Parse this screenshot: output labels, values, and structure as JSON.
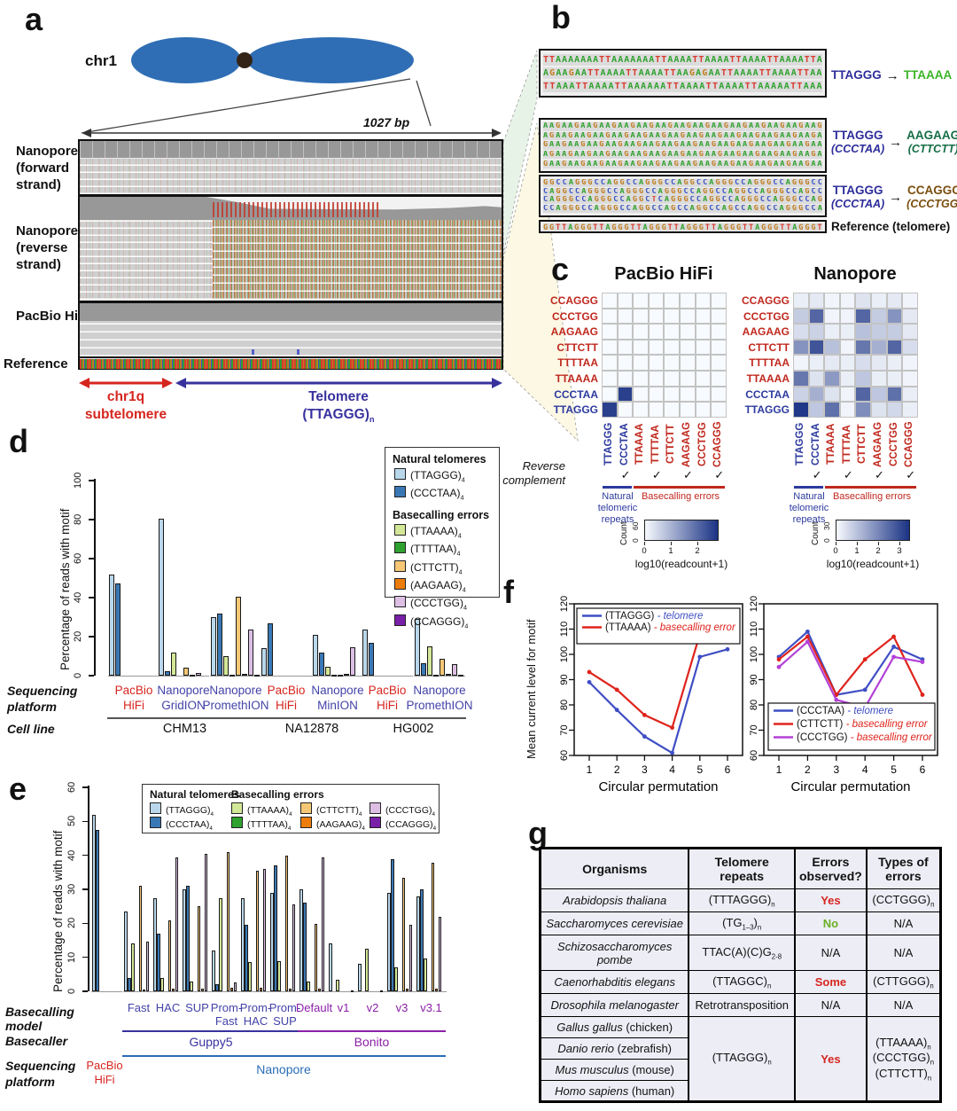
{
  "motifs": [
    "TTAGGG",
    "CCCTAA",
    "TTAAAA",
    "TTTTAA",
    "CTTCTT",
    "AAGAAG",
    "CCCTGG",
    "CCAGGG"
  ],
  "motif_colors": {
    "TTAGGG": "#b9d7ea",
    "CCCTAA": "#3a78b5",
    "TTAAAA": "#d3e897",
    "TTTTAA": "#2ea12e",
    "CTTCTT": "#f6c876",
    "AAGAAG": "#ec7d0c",
    "CCCTGG": "#ddbfe4",
    "CCAGGG": "#7a1fa8"
  },
  "base_colors": {
    "A": "#2fa12e",
    "C": "#3b55c4",
    "G": "#c07c1e",
    "T": "#d93b2f"
  },
  "panel_a": {
    "label": "a",
    "chrom_label": "chr1",
    "scale_label": "1027 bp",
    "track_labels": [
      "Nanopore (forward strand)",
      "Nanopore (reverse strand)",
      "PacBio HiFi",
      "Reference"
    ],
    "regions": [
      {
        "label": "chr1q subtelomere",
        "color": "#d6251f"
      },
      {
        "label": "Telomere (TTAGGG)~n~",
        "color": "#38329e"
      }
    ]
  },
  "panel_b": {
    "label": "b",
    "boxes": [
      {
        "rows": [
          "TTAAAAAAATTAAAAAAATTAAAATTAAAATTAAAATTAAAATTA",
          "AGAAGAATTAAAATTAAAATTAAGAGAATTAAAATTAAAATTAA",
          "TTAAATTAAAATTAAAAAATTAAAATTAAAATTAAAAATTAAA"
        ]
      },
      {
        "rows": [
          "AAGAAGAAGAAGAAGAAGAAGAAGAAGAAGAAGAAGAAGAAGAAG",
          "AGAAGAAGAAGAAGAAGAAGAAGAAGAAGAAGAAGAAGAAGAAGA",
          "GAAGAAGAAGAAGAAGAAGAAGAAGAAGAAGAAGAAGAAGAAGAA",
          "AGAAGAAGAAGAAGAAGAAGAAGAAGAAGAAGAAGAAGAAGAAGA",
          "GAAGAAGAAGAAGAAGAAGAAGAAGAAGAAGAAGAAGAAGAAGAA"
        ]
      },
      {
        "rows": [
          "GGCCAGGGCCAGGCCAGGGCCAGGCCAGGGCCAGGGCCAGGGCC",
          "CAGGCCAGGGCCAGGGCCAGGGCCAGGCCAGGCCAGGGCCAGCC",
          "CAGGGCCAGGGCCAGGCTCAGGGCCAGGCCAGGGCCAGGGCCAG",
          "CCAGGGCCAGGGCCAGGCCAGCCAGGCCAGCCAGGCCAGGGCCA"
        ]
      },
      {
        "rows": [
          "GGTTAGGGTTAGGGTTAGGGTTAGGGTTAGGGTTAGGGTTAGGGT"
        ]
      }
    ],
    "annotations": [
      {
        "from": [
          "TTAGGG"
        ],
        "to": [
          "TTAAAA"
        ],
        "to_color": "#3cb527"
      },
      {
        "from": [
          "TTAGGG",
          "(CCCTAA)"
        ],
        "to": [
          "AAGAAG",
          "(CTTCTT)"
        ],
        "to_color": "#156e46"
      },
      {
        "from": [
          "TTAGGG",
          "(CCCTAA)"
        ],
        "to": [
          "CCAGGG",
          "(CCCTGG)"
        ],
        "to_color": "#7a4e0e"
      }
    ],
    "from_color": "#2d2d9b",
    "reference_label": "Reference (telomere)"
  },
  "panel_c": {
    "label": "c",
    "row_labels": [
      "CCAGGG",
      "CCCTGG",
      "AAGAAG",
      "CTTCTT",
      "TTTTAA",
      "TTAAAA",
      "CCCTAA",
      "TTAGGG"
    ],
    "col_labels": [
      "TTAGGG",
      "CCCTAA",
      "TTAAAA",
      "TTTTAA",
      "CTTCTT",
      "AAGAAG",
      "CCCTGG",
      "CCAGGG"
    ],
    "blue_motifs": [
      "TTAGGG",
      "CCCTAA"
    ],
    "blue": "#2d3a9e",
    "red": "#c0281e",
    "heatmaps": [
      {
        "title": "PacBio HiFi",
        "max": 2.8,
        "count_max": "60",
        "scale_ticks": [
          0,
          1,
          2
        ],
        "matrix": [
          [
            0,
            0,
            0,
            0,
            0,
            0,
            0,
            0
          ],
          [
            0,
            0,
            0,
            0,
            0,
            0,
            0,
            0
          ],
          [
            0,
            0,
            0,
            0,
            0,
            0,
            0,
            0
          ],
          [
            0,
            0,
            0,
            0,
            0,
            0,
            0,
            0
          ],
          [
            0,
            0,
            0,
            0,
            0,
            0,
            0,
            0
          ],
          [
            0,
            0,
            0,
            0,
            0,
            0,
            0,
            0
          ],
          [
            0,
            2.6,
            0,
            0,
            0,
            0,
            0,
            0
          ],
          [
            2.6,
            0,
            0,
            0,
            0,
            0,
            0,
            0
          ]
        ]
      },
      {
        "title": "Nanopore",
        "max": 3.5,
        "count_max": "30",
        "scale_ticks": [
          0,
          1,
          2,
          3
        ],
        "matrix": [
          [
            0.2,
            0.3,
            0.1,
            0.1,
            0.4,
            0.2,
            0.3,
            0.1
          ],
          [
            0.8,
            2.6,
            0.1,
            0.1,
            2.6,
            0.8,
            1.8,
            0.3
          ],
          [
            0.5,
            0.7,
            0.2,
            0.2,
            1.0,
            0.8,
            0.8,
            0.3
          ],
          [
            1.8,
            2.9,
            1.0,
            0.1,
            2.3,
            1.3,
            2.6,
            0.5
          ],
          [
            0.1,
            0.2,
            0.3,
            0.2,
            0.5,
            0.3,
            0.2,
            0.1
          ],
          [
            2.3,
            0.4,
            1.7,
            0.2,
            0.9,
            0.2,
            0.2,
            0.1
          ],
          [
            0.7,
            1.3,
            0.4,
            0.1,
            2.6,
            0.9,
            2.4,
            0.2
          ],
          [
            3.4,
            0.9,
            2.4,
            0.1,
            1.9,
            0.4,
            0.6,
            0.2
          ]
        ]
      }
    ],
    "reverse_complement": "Reverse complement",
    "check": "✓",
    "checked_cols": [
      1,
      3,
      5,
      7
    ],
    "natural_label": "Natural telomeric repeats",
    "errors_label": "Basecalling errors",
    "count_label": "Count",
    "zero_label": "0",
    "scale_caption": "log10(readcount+1)"
  },
  "panel_d": {
    "label": "d",
    "ylabel": "Percentage of reads with motif",
    "yticks": [
      0,
      20,
      40,
      60,
      80,
      100
    ],
    "ymax": 100,
    "legend": {
      "natural_header": "Natural telomeres",
      "errors_header": "Basecalling errors",
      "subscript": "4"
    },
    "groups": [
      {
        "platform": "PacBio HiFi",
        "pcolor": "#d6251f",
        "values": [
          52,
          47.5,
          0,
          0,
          0,
          0,
          0,
          0
        ]
      },
      {
        "platform": "Nanopore GridION",
        "pcolor": "#4343a8",
        "values": [
          80.5,
          2.5,
          12,
          0,
          4,
          0.3,
          1.2,
          0
        ]
      },
      {
        "platform": "Nanopore PromethION",
        "pcolor": "#4343a8",
        "values": [
          30,
          32,
          10,
          0.3,
          40.5,
          0.8,
          23.5,
          0.2
        ]
      },
      {
        "platform": "PacBio HiFi",
        "pcolor": "#d6251f",
        "values": [
          14,
          27,
          0,
          0,
          0,
          0,
          0,
          0
        ]
      },
      {
        "platform": "Nanopore MinION",
        "pcolor": "#4343a8",
        "values": [
          21,
          12,
          4.5,
          0.2,
          0.5,
          1,
          14.5,
          0
        ]
      },
      {
        "platform": "PacBio HiFi",
        "pcolor": "#d6251f",
        "values": [
          23.5,
          17,
          0,
          0,
          0,
          0,
          0,
          0
        ]
      },
      {
        "platform": "Nanopore PromethION",
        "pcolor": "#4343a8",
        "values": [
          29,
          6.5,
          15,
          0.2,
          8.5,
          1,
          6,
          0.2
        ]
      }
    ],
    "row_labels": [
      "Sequencing platform",
      "Cell line"
    ],
    "cell_lines": [
      {
        "label": "CHM13",
        "from": 0,
        "to": 2
      },
      {
        "label": "NA12878",
        "from": 3,
        "to": 4
      },
      {
        "label": "HG002",
        "from": 5,
        "to": 6
      }
    ]
  },
  "panel_e": {
    "label": "e",
    "ylabel": "Percentage of reads with motif",
    "yticks": [
      0,
      10,
      20,
      30,
      40,
      50,
      60
    ],
    "ymax": 60,
    "legend": {
      "natural_header": "Natural telomeres",
      "errors_header": "Basecalling errors",
      "subscript": "4"
    },
    "groups": [
      {
        "model": "",
        "mcolor": "",
        "values": [
          52,
          47.5,
          0,
          0,
          0,
          0,
          0,
          0
        ]
      },
      {
        "model": "Fast",
        "mcolor": "#4343a8",
        "values": [
          23.5,
          4,
          14,
          0,
          31,
          0.5,
          14.5,
          0
        ]
      },
      {
        "model": "HAC",
        "mcolor": "#4343a8",
        "values": [
          27.5,
          17,
          4,
          0,
          21,
          0.7,
          39.5,
          0
        ]
      },
      {
        "model": "SUP",
        "mcolor": "#4343a8",
        "values": [
          30,
          31,
          3,
          0,
          25,
          0.7,
          40.5,
          0
        ]
      },
      {
        "model": "Prom-Fast",
        "mcolor": "#4343a8",
        "values": [
          12,
          2,
          27.5,
          0,
          41,
          1,
          2.5,
          0
        ]
      },
      {
        "model": "Prom-HAC",
        "mcolor": "#4343a8",
        "values": [
          27.5,
          19.5,
          8.5,
          0,
          35.5,
          1,
          36,
          0
        ]
      },
      {
        "model": "Prom-SUP",
        "mcolor": "#4343a8",
        "values": [
          29,
          37,
          9,
          0,
          40,
          0.8,
          25.5,
          0
        ]
      },
      {
        "model": "Default",
        "mcolor": "#8b1fa8",
        "values": [
          30,
          26,
          2.8,
          0,
          19.8,
          0.7,
          39.5,
          0
        ]
      },
      {
        "model": "v1",
        "mcolor": "#8b1fa8",
        "values": [
          14,
          0,
          3.5,
          0,
          0,
          0,
          0.2,
          0
        ]
      },
      {
        "model": "v2",
        "mcolor": "#8b1fa8",
        "values": [
          8,
          0,
          12.5,
          0,
          0,
          0,
          0.2,
          0
        ]
      },
      {
        "model": "v3",
        "mcolor": "#8b1fa8",
        "values": [
          29,
          39,
          7,
          0,
          33.5,
          0.8,
          19.5,
          0
        ]
      },
      {
        "model": "v3.1",
        "mcolor": "#8b1fa8",
        "values": [
          28,
          30,
          9.7,
          0,
          37.8,
          0.8,
          21.8,
          0
        ]
      }
    ],
    "basecallers": [
      {
        "label": "Guppy5",
        "from": 1,
        "to": 6,
        "color": "#38329e"
      },
      {
        "label": "Bonito",
        "from": 7,
        "to": 11,
        "color": "#8b1fa8"
      }
    ],
    "platform_pacbio": {
      "label": "PacBio HiFi",
      "color": "#d6251f"
    },
    "platform_nanopore": {
      "label": "Nanopore",
      "color": "#2a6db5",
      "from": 1,
      "to": 11
    },
    "row_labels": [
      "Basecalling model",
      "Basecaller",
      "Sequencing platform"
    ]
  },
  "panel_f": {
    "label": "f",
    "ylabel": "Mean current level for motif",
    "xlabel": "Circular permutation",
    "ylim": [
      60,
      120
    ],
    "yticks": [
      60,
      70,
      80,
      90,
      100,
      110,
      120
    ],
    "xticks": [
      1,
      2,
      3,
      4,
      5,
      6
    ],
    "plots": [
      {
        "legend_pos": "top",
        "series": [
          {
            "name": "(TTAGGG)~n~",
            "tag": " - telomere",
            "color": "#3f4ec4",
            "tag_color": "#3f4ec4",
            "values": [
              89,
              78,
              67.5,
              61,
              99,
              102
            ]
          },
          {
            "name": "(TTAAAA)~n~",
            "tag": " - basecalling error",
            "color": "#df231c",
            "tag_color": "#df231c",
            "values": [
              93,
              86,
              76,
              71,
              108,
              107.5
            ]
          }
        ]
      },
      {
        "legend_pos": "bottom",
        "series": [
          {
            "name": "(CCCTAA)~n~",
            "tag": " - telomere",
            "color": "#3f4ec4",
            "tag_color": "#3f4ec4",
            "values": [
              99,
              109,
              84,
              86,
              103,
              98
            ]
          },
          {
            "name": "(CTTCTT)~n~",
            "tag": " - basecalling error",
            "color": "#df231c",
            "tag_color": "#df231c",
            "values": [
              98,
              107,
              84,
              98,
              107,
              84
            ]
          },
          {
            "name": "(CCCTGG)~n~",
            "tag": " - basecalling error",
            "color": "#b341d6",
            "tag_color": "#df231c",
            "values": [
              95,
              105,
              82,
              79,
              99,
              97
            ]
          }
        ]
      }
    ]
  },
  "panel_g": {
    "label": "g",
    "headers": [
      "Organisms",
      "Telomere repeats",
      "Errors observed?",
      "Types of errors"
    ],
    "rows": [
      {
        "organism": "Arabidopsis thaliana",
        "common": "",
        "repeats": "(TTTAGGG)~n~",
        "errors": "Yes",
        "ecolor": "#d6251f",
        "types": "(CCTGGG)~n~"
      },
      {
        "organism": "Saccharomyces cerevisiae",
        "common": "",
        "repeats": "(TG~1–3~)~n~",
        "errors": "No",
        "ecolor": "#6ab023",
        "types": "N/A"
      },
      {
        "organism": "Schizosaccharomyces pombe",
        "common": "",
        "repeats": "TTAC(A)(C)G~2-8~",
        "errors": "N/A",
        "ecolor": "#111111",
        "types": "N/A"
      },
      {
        "organism": "Caenorhabditis elegans",
        "common": "",
        "repeats": "(TTAGGC)~n~",
        "errors": "Some",
        "ecolor": "#d6251f",
        "types": "(CTTGGG)~n~"
      },
      {
        "organism": "Drosophila melanogaster",
        "common": "",
        "repeats": "Retrotransposition",
        "errors": "N/A",
        "ecolor": "#111111",
        "types": "N/A"
      }
    ],
    "merged": {
      "organisms": [
        {
          "name": "Gallus gallus",
          "common": "(chicken)"
        },
        {
          "name": "Danio rerio",
          "common": "(zebrafish)"
        },
        {
          "name": "Mus musculus",
          "common": "(mouse)"
        },
        {
          "name": "Homo sapiens",
          "common": "(human)"
        }
      ],
      "repeats": "(TTAGGG)~n~",
      "errors": "Yes",
      "ecolor": "#d6251f",
      "types": [
        "(TTAAAA)~n~",
        "(CCCTGG)~n~",
        "(CTTCTT)~n~"
      ]
    }
  }
}
